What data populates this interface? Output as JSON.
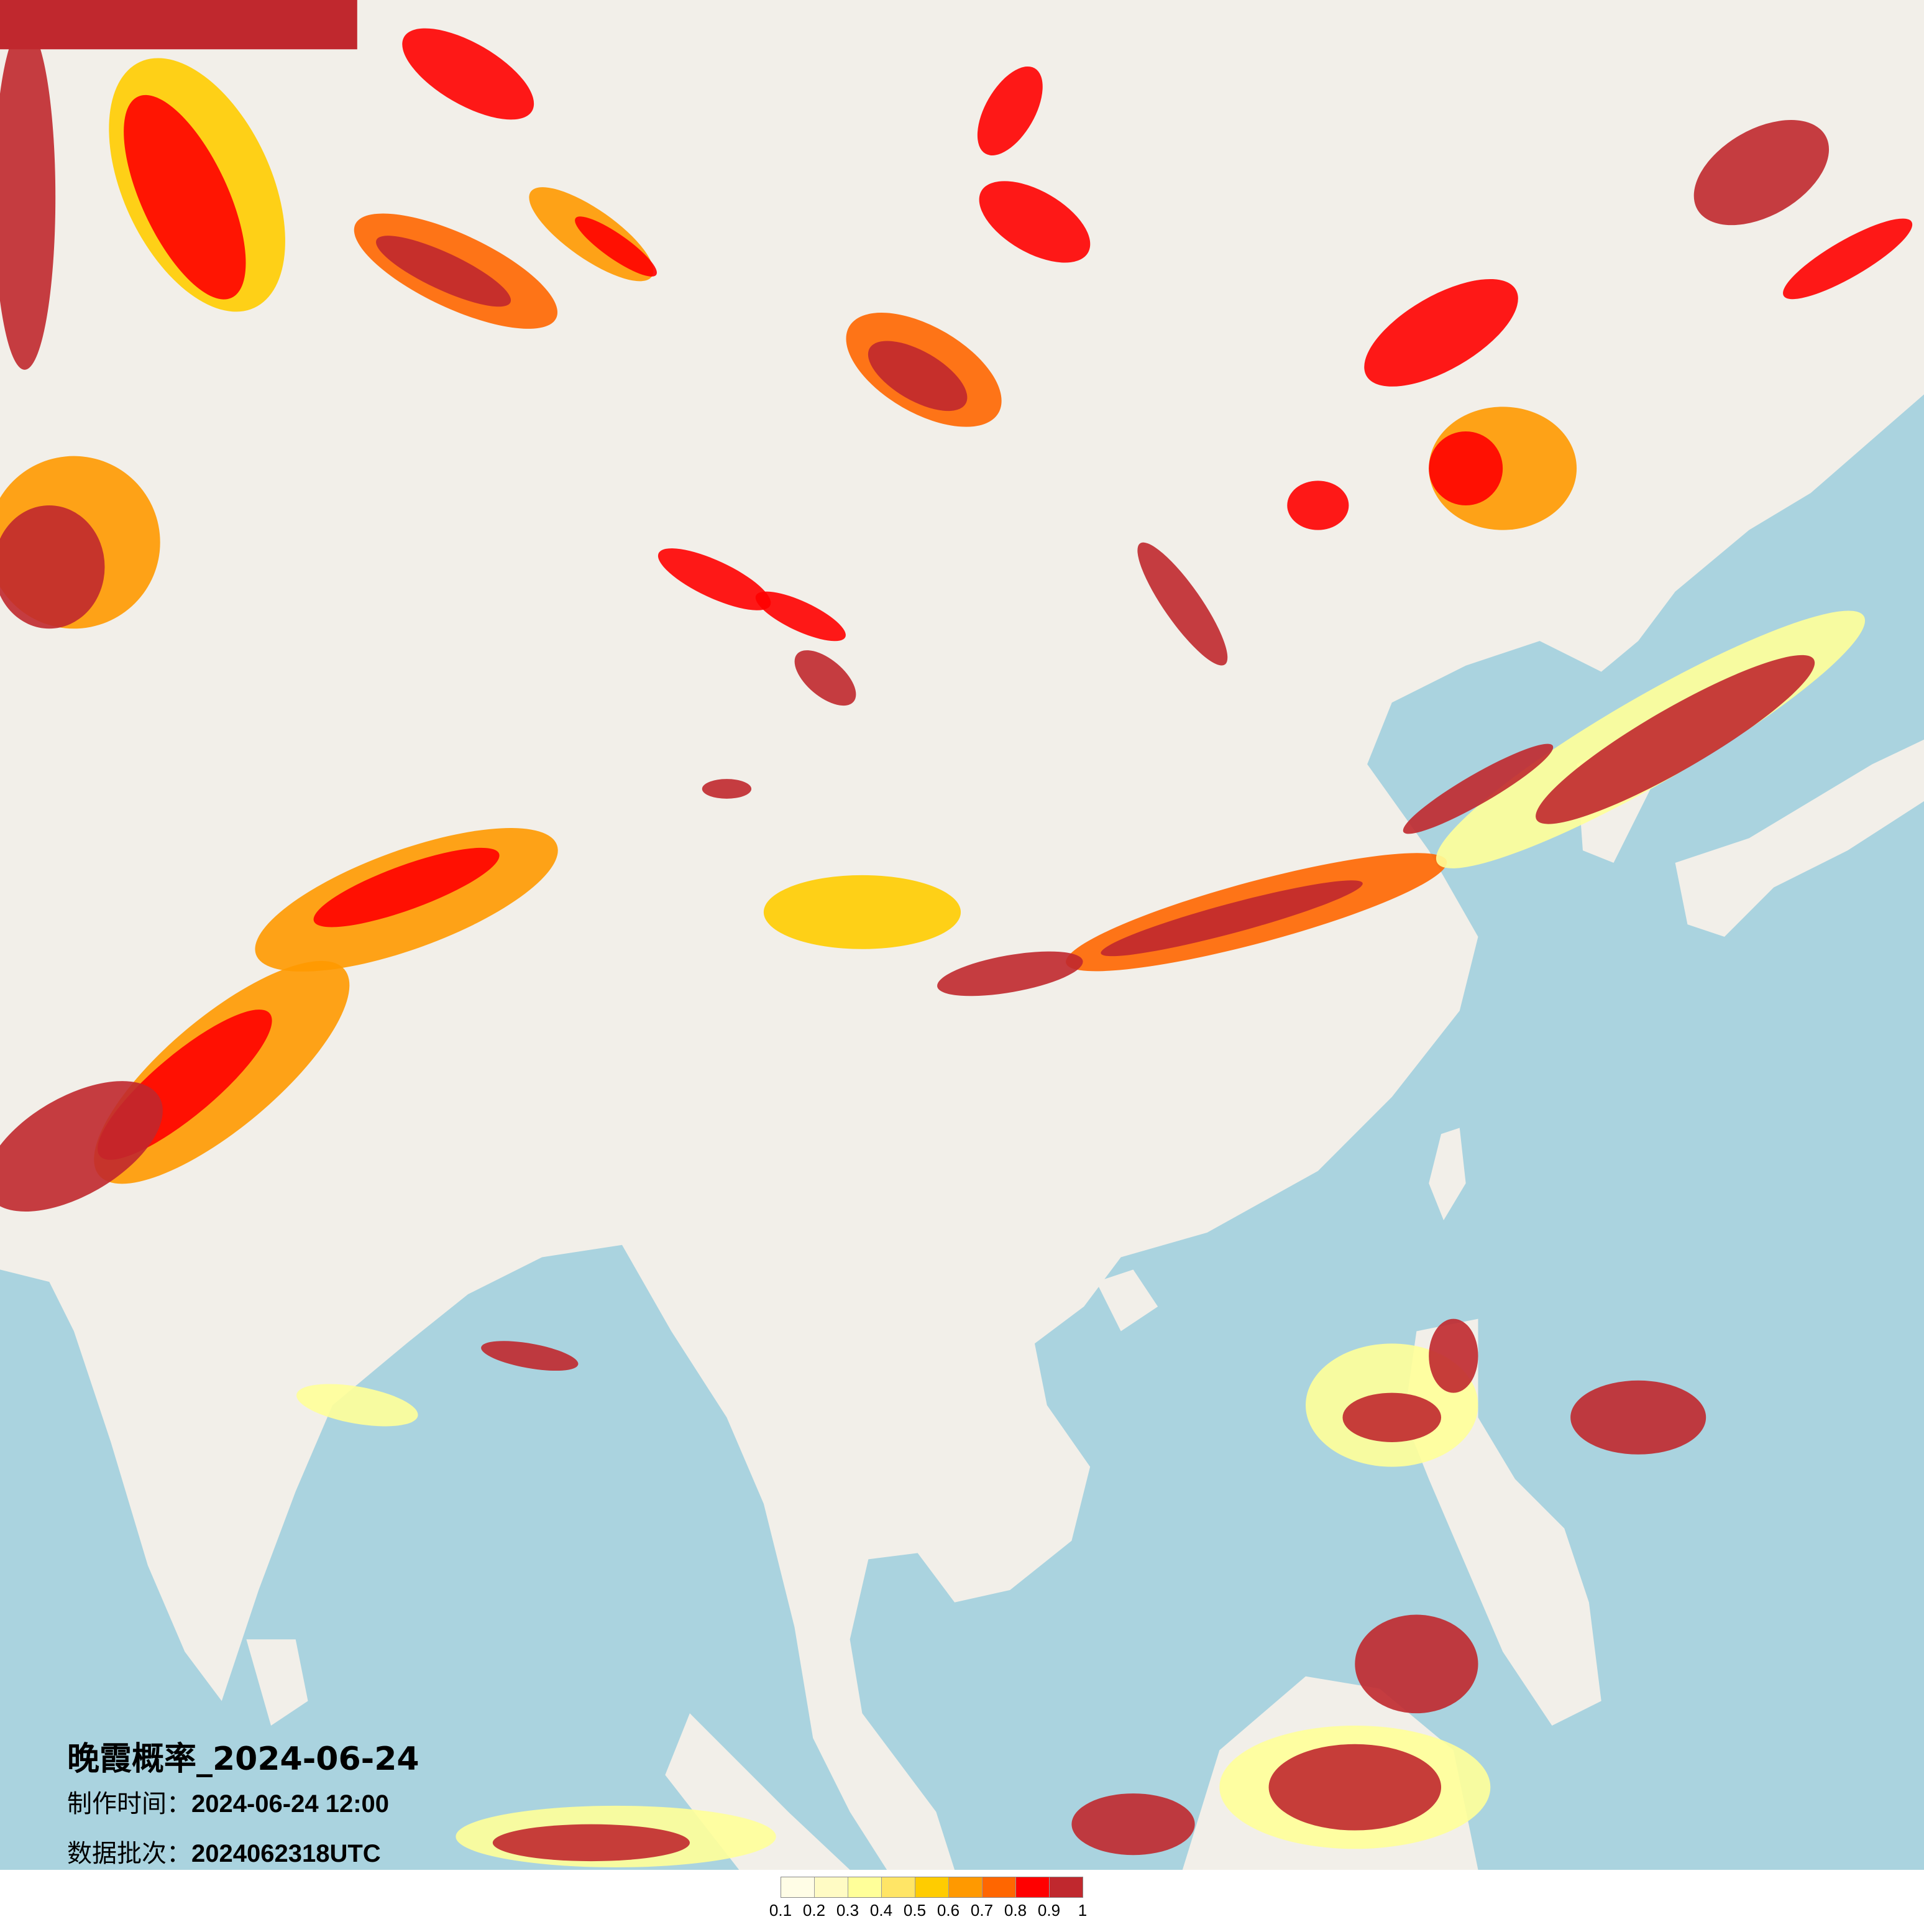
{
  "title": "晚霞概率_2024-06-24",
  "production_time": {
    "label": "制作时间：",
    "value": "2024-06-24 12:00"
  },
  "data_batch": {
    "label": "数据批次：",
    "value": "2024062318UTC"
  },
  "legend": {
    "labels": [
      "0.1",
      "0.2",
      "0.3",
      "0.4",
      "0.5",
      "0.6",
      "0.7",
      "0.8",
      "0.9",
      "1"
    ],
    "colors": [
      "#fffde6",
      "#fffbc4",
      "#ffff99",
      "#ffe566",
      "#ffcc00",
      "#ff9900",
      "#ff6600",
      "#ff0000",
      "#c0282e"
    ]
  },
  "map": {
    "land_color": "#f2efe9",
    "sea_color": "#aad3df"
  }
}
